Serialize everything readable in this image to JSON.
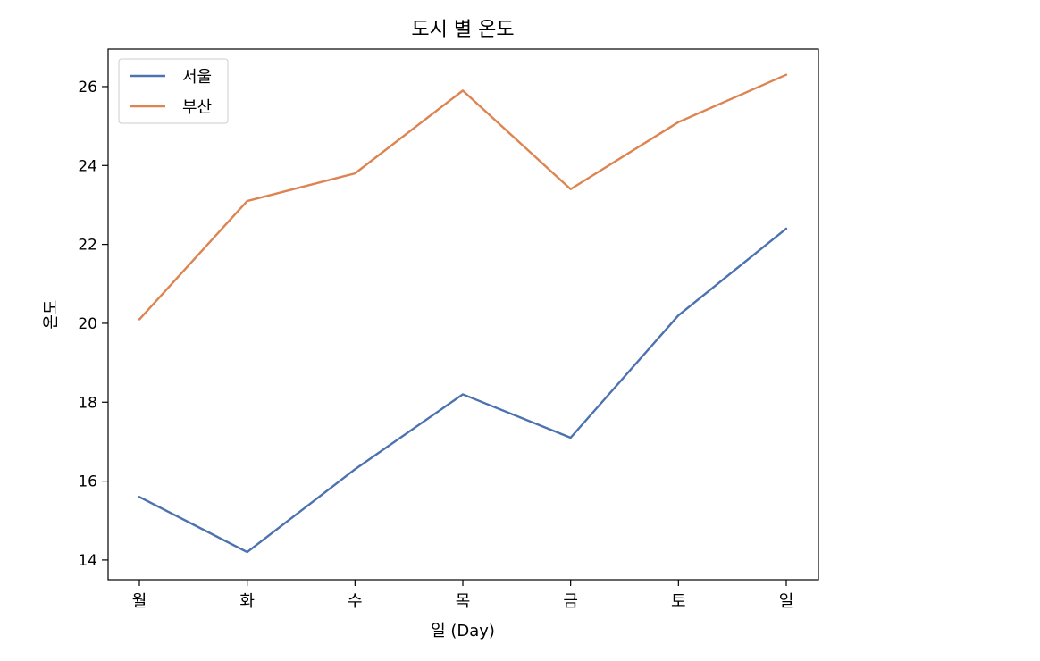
{
  "chart_data": {
    "type": "line",
    "title": "도시 별 온도",
    "xlabel": "일 (Day)",
    "ylabel": "온도",
    "categories": [
      "월",
      "화",
      "수",
      "목",
      "금",
      "토",
      "일"
    ],
    "ylim": [
      13.5,
      26.95
    ],
    "yticks": [
      14,
      16,
      18,
      20,
      22,
      24,
      26
    ],
    "grid": false,
    "legend_position": "top-left",
    "series": [
      {
        "name": "서울",
        "color": "#4c72b0",
        "values": [
          15.6,
          14.2,
          16.3,
          18.2,
          17.1,
          20.2,
          22.4
        ]
      },
      {
        "name": "부산",
        "color": "#dd8452",
        "values": [
          20.1,
          23.1,
          23.8,
          25.9,
          23.4,
          25.1,
          26.3
        ]
      }
    ]
  }
}
